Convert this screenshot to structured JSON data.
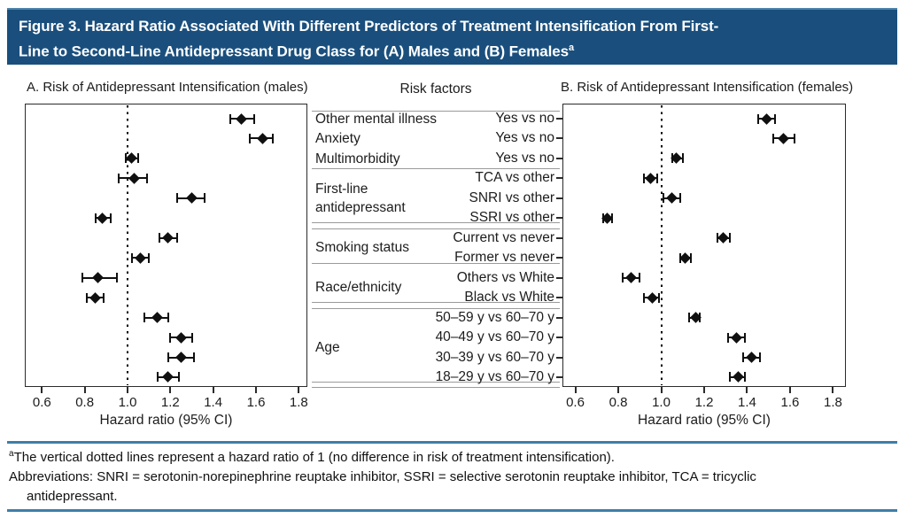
{
  "figure": {
    "title_line1": "Figure 3. Hazard Ratio Associated With Different Predictors of Treatment Intensification From First-",
    "title_line2": "Line to Second-Line Antidepressant Drug Class for (A) Males and (B) Females",
    "title_superscript": "a"
  },
  "middle": {
    "header": "Risk factors",
    "groups": [
      {
        "label": "",
        "row_labels": [
          "Other mental illness",
          "Anxiety",
          "Multimorbidity"
        ],
        "comparators": [
          "Yes vs no",
          "Yes vs no",
          "Yes vs no"
        ],
        "rows": [
          0,
          1,
          2
        ]
      },
      {
        "label": "First-line antidepressant",
        "comparators": [
          "TCA vs other",
          "SNRI vs other",
          "SSRI vs other"
        ],
        "rows": [
          3,
          4,
          5
        ]
      },
      {
        "label": "Smoking status",
        "comparators": [
          "Current vs never",
          "Former vs never"
        ],
        "rows": [
          6,
          7
        ]
      },
      {
        "label": "Race/ethnicity",
        "comparators": [
          "Others vs White",
          "Black vs White"
        ],
        "rows": [
          8,
          9
        ]
      },
      {
        "label": "Age",
        "comparators": [
          "50–59 y vs 60–70 y",
          "40–49 y vs 60–70 y",
          "30–39 y vs 60–70 y",
          "18–29 y vs 60–70 y"
        ],
        "rows": [
          10,
          11,
          12,
          13
        ]
      }
    ]
  },
  "footnote": {
    "line1_superscript": "a",
    "line1": "The vertical dotted lines represent a hazard ratio of 1 (no difference in risk of treatment intensification).",
    "line2": "Abbreviations: SNRI = serotonin-norepinephrine reuptake inhibitor, SSRI = selective serotonin reuptake inhibitor, TCA = tricyclic",
    "line3": "antidepressant."
  },
  "colors": {
    "header_bg": "#1a4f7d",
    "rule_blue": "#3f7ea8",
    "marker_black": "#101010"
  },
  "chart_data": [
    {
      "type": "scatter",
      "subtype": "forest-plot",
      "title": "A. Risk of Antidepressant Intensification (males)",
      "xlabel": "Hazard ratio (95% CI)",
      "xticks": [
        0.6,
        0.8,
        1.0,
        1.2,
        1.4,
        1.6,
        1.8
      ],
      "xlim": [
        0.52,
        1.84
      ],
      "refline": 1.0,
      "grid": false,
      "rows": [
        {
          "risk_factor": "Other mental illness",
          "comparison": "Yes vs no",
          "hr": 1.53,
          "ci_low": 1.48,
          "ci_high": 1.59
        },
        {
          "risk_factor": "Anxiety",
          "comparison": "Yes vs no",
          "hr": 1.63,
          "ci_low": 1.57,
          "ci_high": 1.68
        },
        {
          "risk_factor": "Multimorbidity",
          "comparison": "Yes vs no",
          "hr": 1.02,
          "ci_low": 0.99,
          "ci_high": 1.05
        },
        {
          "risk_factor": "First-line antidepressant",
          "comparison": "TCA vs other",
          "hr": 1.03,
          "ci_low": 0.96,
          "ci_high": 1.09
        },
        {
          "risk_factor": "First-line antidepressant",
          "comparison": "SNRI vs other",
          "hr": 1.3,
          "ci_low": 1.23,
          "ci_high": 1.36
        },
        {
          "risk_factor": "First-line antidepressant",
          "comparison": "SSRI vs other",
          "hr": 0.88,
          "ci_low": 0.85,
          "ci_high": 0.92
        },
        {
          "risk_factor": "Smoking status",
          "comparison": "Current vs never",
          "hr": 1.19,
          "ci_low": 1.15,
          "ci_high": 1.23
        },
        {
          "risk_factor": "Smoking status",
          "comparison": "Former vs never",
          "hr": 1.06,
          "ci_low": 1.02,
          "ci_high": 1.1
        },
        {
          "risk_factor": "Race/ethnicity",
          "comparison": "Others vs White",
          "hr": 0.86,
          "ci_low": 0.79,
          "ci_high": 0.95
        },
        {
          "risk_factor": "Race/ethnicity",
          "comparison": "Black vs White",
          "hr": 0.85,
          "ci_low": 0.81,
          "ci_high": 0.89
        },
        {
          "risk_factor": "Age",
          "comparison": "50–59 y vs 60–70 y",
          "hr": 1.14,
          "ci_low": 1.08,
          "ci_high": 1.19
        },
        {
          "risk_factor": "Age",
          "comparison": "40–49 y vs 60–70 y",
          "hr": 1.25,
          "ci_low": 1.2,
          "ci_high": 1.3
        },
        {
          "risk_factor": "Age",
          "comparison": "30–39 y vs 60–70 y",
          "hr": 1.25,
          "ci_low": 1.19,
          "ci_high": 1.31
        },
        {
          "risk_factor": "Age",
          "comparison": "18–29 y vs 60–70 y",
          "hr": 1.19,
          "ci_low": 1.14,
          "ci_high": 1.24
        }
      ]
    },
    {
      "type": "scatter",
      "subtype": "forest-plot",
      "title": "B. Risk of Antidepressant Intensification (females)",
      "xlabel": "Hazard ratio (95% CI)",
      "xticks": [
        0.6,
        0.8,
        1.0,
        1.2,
        1.4,
        1.6,
        1.8
      ],
      "xlim": [
        0.54,
        1.86
      ],
      "refline": 1.0,
      "grid": false,
      "rows": [
        {
          "risk_factor": "Other mental illness",
          "comparison": "Yes vs no",
          "hr": 1.49,
          "ci_low": 1.45,
          "ci_high": 1.53
        },
        {
          "risk_factor": "Anxiety",
          "comparison": "Yes vs no",
          "hr": 1.57,
          "ci_low": 1.52,
          "ci_high": 1.62
        },
        {
          "risk_factor": "Multimorbidity",
          "comparison": "Yes vs no",
          "hr": 1.07,
          "ci_low": 1.05,
          "ci_high": 1.1
        },
        {
          "risk_factor": "First-line antidepressant",
          "comparison": "TCA vs other",
          "hr": 0.95,
          "ci_low": 0.92,
          "ci_high": 0.98
        },
        {
          "risk_factor": "First-line antidepressant",
          "comparison": "SNRI vs other",
          "hr": 1.05,
          "ci_low": 1.01,
          "ci_high": 1.09
        },
        {
          "risk_factor": "First-line antidepressant",
          "comparison": "SSRI vs other",
          "hr": 0.75,
          "ci_low": 0.73,
          "ci_high": 0.77
        },
        {
          "risk_factor": "Smoking status",
          "comparison": "Current vs never",
          "hr": 1.29,
          "ci_low": 1.26,
          "ci_high": 1.32
        },
        {
          "risk_factor": "Smoking status",
          "comparison": "Former vs never",
          "hr": 1.11,
          "ci_low": 1.09,
          "ci_high": 1.14
        },
        {
          "risk_factor": "Race/ethnicity",
          "comparison": "Others vs White",
          "hr": 0.86,
          "ci_low": 0.82,
          "ci_high": 0.9
        },
        {
          "risk_factor": "Race/ethnicity",
          "comparison": "Black vs White",
          "hr": 0.96,
          "ci_low": 0.92,
          "ci_high": 0.99
        },
        {
          "risk_factor": "Age",
          "comparison": "50–59 y vs 60–70 y",
          "hr": 1.16,
          "ci_low": 1.13,
          "ci_high": 1.18
        },
        {
          "risk_factor": "Age",
          "comparison": "40–49 y vs 60–70 y",
          "hr": 1.35,
          "ci_low": 1.31,
          "ci_high": 1.39
        },
        {
          "risk_factor": "Age",
          "comparison": "30–39 y vs 60–70 y",
          "hr": 1.42,
          "ci_low": 1.38,
          "ci_high": 1.46
        },
        {
          "risk_factor": "Age",
          "comparison": "18–29 y vs 60–70 y",
          "hr": 1.36,
          "ci_low": 1.32,
          "ci_high": 1.39
        }
      ]
    }
  ]
}
